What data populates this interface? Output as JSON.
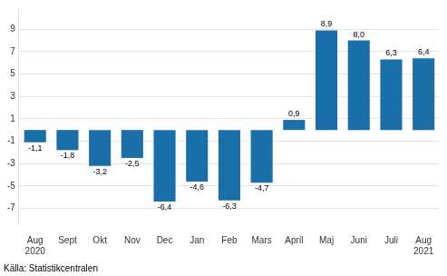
{
  "chart_data": {
    "type": "bar",
    "categories": [
      "Aug\n2020",
      "Sept",
      "Okt",
      "Nov",
      "Dec",
      "Jan",
      "Feb",
      "Mars",
      "April",
      "Maj",
      "Juni",
      "Juli",
      "Aug\n2021"
    ],
    "values": [
      -1.1,
      -1.8,
      -3.2,
      -2.5,
      -6.4,
      -4.6,
      -6.3,
      -4.7,
      0.9,
      8.9,
      8.0,
      6.3,
      6.4
    ],
    "value_labels": [
      "-1,1",
      "-1,8",
      "-3,2",
      "-2,5",
      "-6,4",
      "-4,6",
      "-6,3",
      "-4,7",
      "0,9",
      "8,9",
      "8,0",
      "6,3",
      "6,4"
    ],
    "color": "#1a6fa8",
    "ylim": [
      -8.5,
      10.8
    ],
    "yticks": [
      -7,
      -5,
      -3,
      -1,
      1,
      3,
      5,
      7,
      9
    ],
    "grid": true,
    "data_labels": true,
    "annotations": [
      "Källa: Statistikcentralen"
    ]
  }
}
